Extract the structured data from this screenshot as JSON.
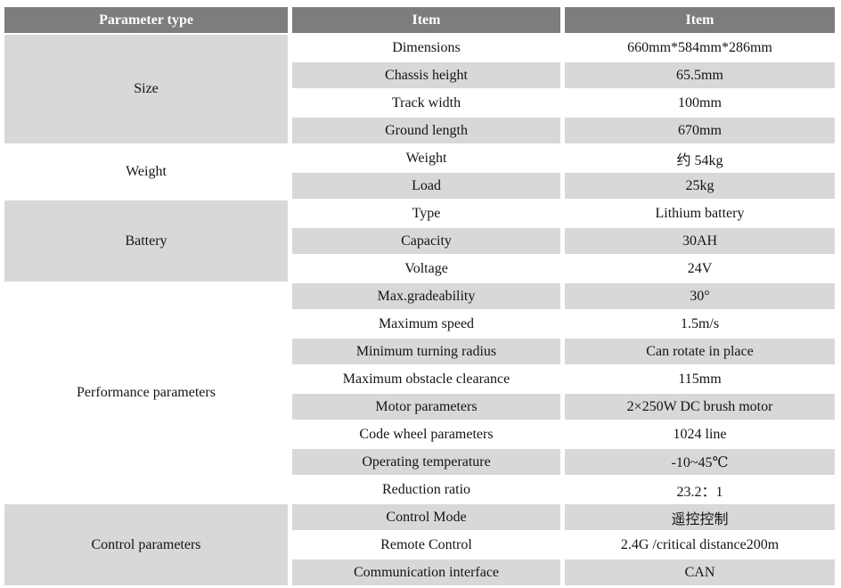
{
  "colors": {
    "header_bg": "#7d7d7d",
    "header_text": "#ffffff",
    "stripe_bg": "#d8d8d8",
    "body_text": "#141414",
    "page_bg": "#ffffff"
  },
  "table": {
    "headers": [
      {
        "label": "Parameter type"
      },
      {
        "label": "Item"
      },
      {
        "label": "Item"
      }
    ],
    "groups": [
      {
        "name": "Size",
        "rows": [
          {
            "item": "Dimensions",
            "value": "660mm*584mm*286mm"
          },
          {
            "item": "Chassis height",
            "value": "65.5mm"
          },
          {
            "item": "Track width",
            "value": "100mm"
          },
          {
            "item": "Ground length",
            "value": "670mm"
          }
        ]
      },
      {
        "name": "Weight",
        "rows": [
          {
            "item": "Weight",
            "value": "约 54kg"
          },
          {
            "item": "Load",
            "value": "25kg"
          }
        ]
      },
      {
        "name": "Battery",
        "rows": [
          {
            "item": "Type",
            "value": "Lithium battery"
          },
          {
            "item": "Capacity",
            "value": "30AH"
          },
          {
            "item": "Voltage",
            "value": "24V"
          }
        ]
      },
      {
        "name": "Performance parameters",
        "rows": [
          {
            "item": "Max.gradeability",
            "value": "30°"
          },
          {
            "item": "Maximum speed",
            "value": "1.5m/s"
          },
          {
            "item": "Minimum turning radius",
            "value": "Can rotate in place"
          },
          {
            "item": "Maximum obstacle clearance",
            "value": "115mm"
          },
          {
            "item": "Motor parameters",
            "value": "2×250W DC brush motor"
          },
          {
            "item": "Code wheel parameters",
            "value": "1024 line"
          },
          {
            "item": "Operating temperature",
            "value": "-10~45℃"
          },
          {
            "item": "Reduction ratio",
            "value": "23.2：1"
          }
        ]
      },
      {
        "name": "Control parameters",
        "rows": [
          {
            "item": "Control Mode",
            "value": "遥控控制"
          },
          {
            "item": "Remote Control",
            "value": "2.4G /critical distance200m"
          },
          {
            "item": "Communication interface",
            "value": "CAN"
          }
        ]
      }
    ]
  }
}
